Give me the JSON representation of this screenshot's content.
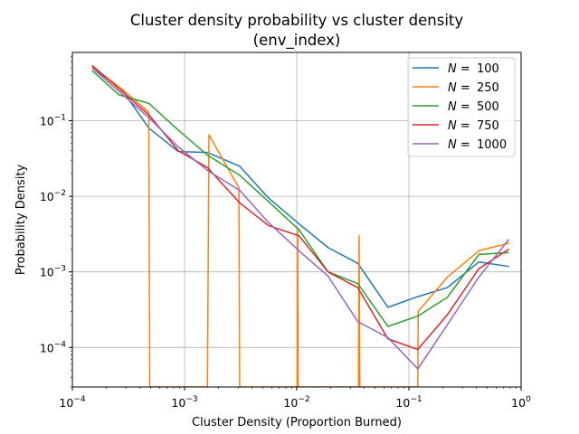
{
  "chart_data": {
    "type": "line",
    "title": "Cluster density probability vs cluster density",
    "subtitle": "(env_index)",
    "xlabel": "Cluster Density (Proportion Burned)",
    "ylabel": "Probability Density",
    "xscale": "log",
    "yscale": "log",
    "xlim": [
      0.0001,
      1.0
    ],
    "ylim": [
      3e-05,
      0.8
    ],
    "xticks": [
      {
        "value": 0.0001,
        "base": "10",
        "exp": "−4"
      },
      {
        "value": 0.001,
        "base": "10",
        "exp": "−3"
      },
      {
        "value": 0.01,
        "base": "10",
        "exp": "−2"
      },
      {
        "value": 0.1,
        "base": "10",
        "exp": "−1"
      },
      {
        "value": 1,
        "base": "10",
        "exp": "0"
      }
    ],
    "yticks": [
      {
        "value": 0.0001,
        "base": "10",
        "exp": "−4"
      },
      {
        "value": 0.001,
        "base": "10",
        "exp": "−3"
      },
      {
        "value": 0.01,
        "base": "10",
        "exp": "−2"
      },
      {
        "value": 0.1,
        "base": "10",
        "exp": "−1"
      }
    ],
    "grid": true,
    "legend_position": "upper right",
    "series": [
      {
        "name_prefix": "N =",
        "name_value": "100",
        "color": "#1f77b4",
        "points": [
          [
            0.00015,
            0.5
          ],
          [
            0.00027,
            0.27
          ],
          [
            0.00048,
            0.08
          ],
          [
            0.00088,
            0.039
          ],
          [
            0.0016,
            0.038
          ],
          [
            0.0031,
            0.025
          ],
          [
            0.0056,
            0.0095
          ],
          [
            0.0105,
            0.0043
          ],
          [
            0.019,
            0.0021
          ],
          [
            0.035,
            0.0013
          ],
          [
            0.065,
            0.00034
          ],
          [
            0.12,
            0.00047
          ],
          [
            0.22,
            0.00062
          ],
          [
            0.42,
            0.00135
          ],
          [
            0.78,
            0.00118
          ]
        ]
      },
      {
        "name_prefix": "N =",
        "name_value": "250",
        "color": "#ff7f0e",
        "points": [
          [
            0.00015,
            0.52
          ],
          [
            0.00027,
            0.27
          ],
          [
            0.00048,
            0.13
          ],
          [
            0.00049,
            3e-05
          ],
          [
            0.0016,
            3e-05
          ],
          [
            0.00165,
            0.065
          ],
          [
            0.00305,
            0.013
          ],
          [
            0.0031,
            3e-05
          ],
          [
            0.0101,
            3e-05
          ],
          [
            0.0102,
            0.0037
          ],
          [
            0.0103,
            3e-05
          ],
          [
            0.0355,
            3e-05
          ],
          [
            0.036,
            0.003
          ],
          [
            0.0365,
            3e-05
          ],
          [
            0.12,
            3e-05
          ],
          [
            0.121,
            0.0003
          ],
          [
            0.22,
            0.00085
          ],
          [
            0.42,
            0.0019
          ],
          [
            0.78,
            0.0024
          ]
        ]
      },
      {
        "name_prefix": "N =",
        "name_value": "500",
        "color": "#2ca02c",
        "points": [
          [
            0.00015,
            0.46
          ],
          [
            0.00026,
            0.22
          ],
          [
            0.00048,
            0.17
          ],
          [
            0.00088,
            0.075
          ],
          [
            0.0016,
            0.035
          ],
          [
            0.0031,
            0.019
          ],
          [
            0.0056,
            0.0085
          ],
          [
            0.0105,
            0.0036
          ],
          [
            0.019,
            0.001
          ],
          [
            0.035,
            0.0007
          ],
          [
            0.065,
            0.00019
          ],
          [
            0.12,
            0.00026
          ],
          [
            0.22,
            0.00046
          ],
          [
            0.42,
            0.0017
          ],
          [
            0.78,
            0.0018
          ]
        ]
      },
      {
        "name_prefix": "N =",
        "name_value": "750",
        "color": "#d62728",
        "points": [
          [
            0.00015,
            0.54
          ],
          [
            0.00048,
            0.12
          ],
          [
            0.00088,
            0.04
          ],
          [
            0.0016,
            0.024
          ],
          [
            0.0031,
            0.0082
          ],
          [
            0.0056,
            0.0041
          ],
          [
            0.0105,
            0.003
          ],
          [
            0.019,
            0.001
          ],
          [
            0.035,
            0.00062
          ],
          [
            0.065,
            0.00013
          ],
          [
            0.12,
            9.4e-05
          ],
          [
            0.22,
            0.00027
          ],
          [
            0.42,
            0.0011
          ],
          [
            0.78,
            0.002
          ]
        ]
      },
      {
        "name_prefix": "N =",
        "name_value": "1000",
        "color": "#9467bd",
        "points": [
          [
            0.00015,
            0.5
          ],
          [
            0.00048,
            0.11
          ],
          [
            0.00088,
            0.045
          ],
          [
            0.0016,
            0.022
          ],
          [
            0.0031,
            0.012
          ],
          [
            0.0056,
            0.0045
          ],
          [
            0.0105,
            0.0019
          ],
          [
            0.019,
            0.00088
          ],
          [
            0.035,
            0.00022
          ],
          [
            0.065,
            0.000135
          ],
          [
            0.12,
            5.2e-05
          ],
          [
            0.22,
            0.0002
          ],
          [
            0.42,
            0.00085
          ],
          [
            0.78,
            0.0027
          ]
        ]
      }
    ]
  }
}
